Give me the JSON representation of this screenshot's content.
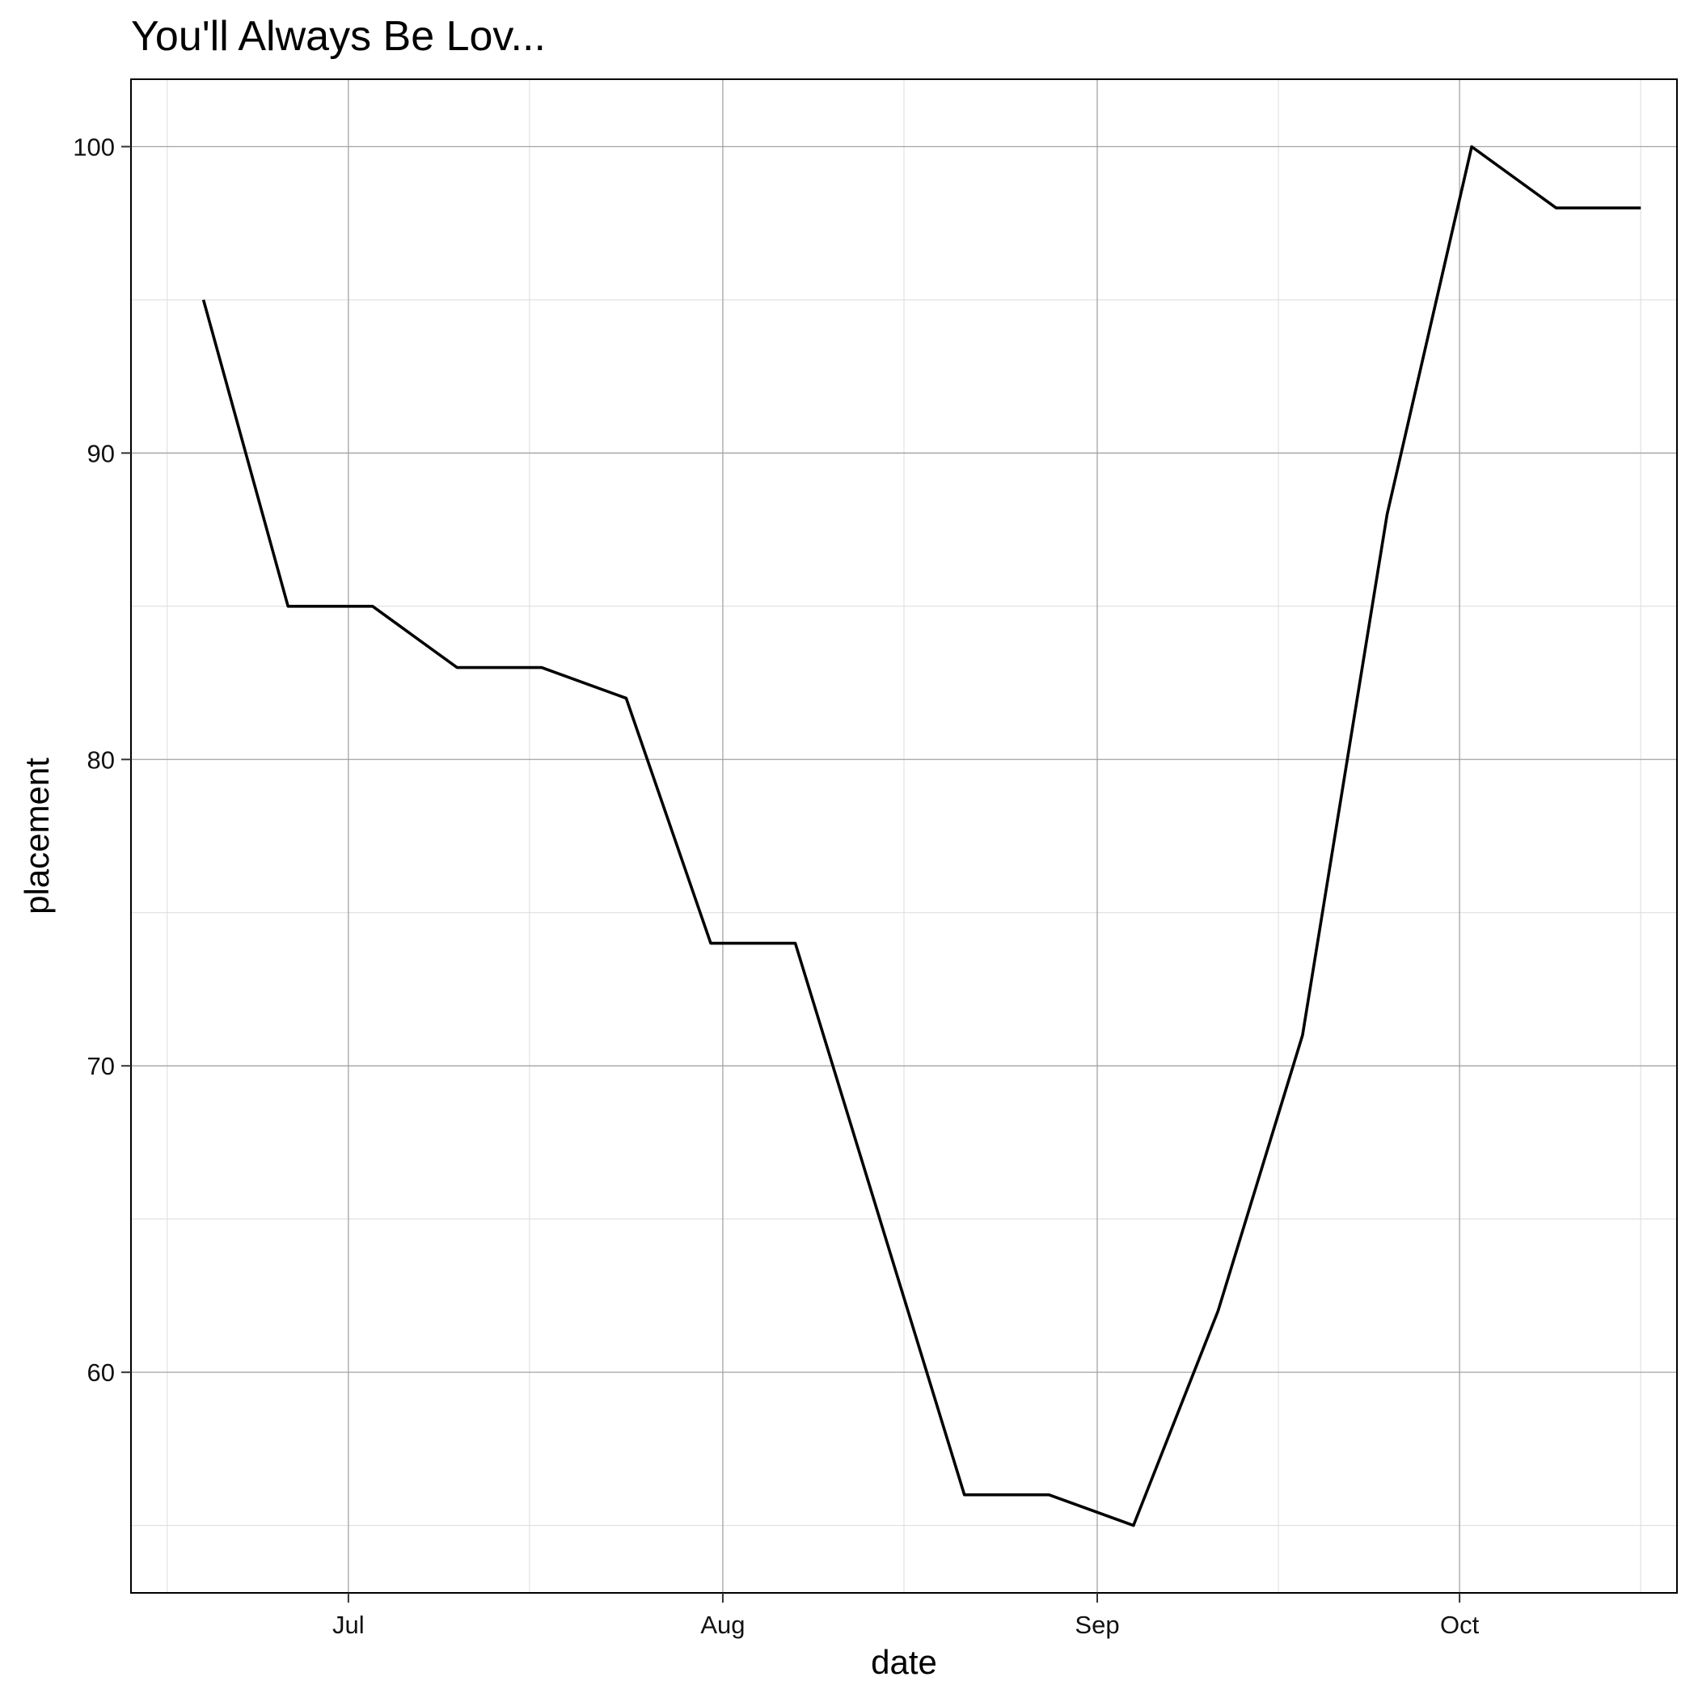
{
  "chart_data": {
    "type": "line",
    "title": "You'll Always Be Lov...",
    "xlabel": "date",
    "ylabel": "placement",
    "x_type": "date",
    "xlim": [
      "2022-06-13",
      "2022-10-19"
    ],
    "ylim": [
      52.8,
      102.2
    ],
    "x_ticks": [
      {
        "label": "Jul",
        "date": "2022-07-01"
      },
      {
        "label": "Aug",
        "date": "2022-08-01"
      },
      {
        "label": "Sep",
        "date": "2022-09-01"
      },
      {
        "label": "Oct",
        "date": "2022-10-01"
      }
    ],
    "x_minor_ticks": [
      "2022-06-16",
      "2022-07-16",
      "2022-08-16",
      "2022-09-16",
      "2022-10-16"
    ],
    "y_ticks": [
      60,
      70,
      80,
      90,
      100
    ],
    "y_minor_ticks": [
      55,
      65,
      75,
      85,
      95
    ],
    "grid": true,
    "legend": "none",
    "series": [
      {
        "color": "#000000",
        "x": [
          "2022-06-19",
          "2022-06-26",
          "2022-07-03",
          "2022-07-10",
          "2022-07-17",
          "2022-07-24",
          "2022-07-31",
          "2022-08-07",
          "2022-08-14",
          "2022-08-21",
          "2022-08-28",
          "2022-09-04",
          "2022-09-11",
          "2022-09-18",
          "2022-09-25",
          "2022-10-02",
          "2022-10-09",
          "2022-10-16"
        ],
        "values": [
          95,
          85,
          85,
          83,
          83,
          82,
          74,
          74,
          65,
          56,
          56,
          55,
          62,
          71,
          88,
          100,
          98,
          98
        ]
      }
    ]
  }
}
